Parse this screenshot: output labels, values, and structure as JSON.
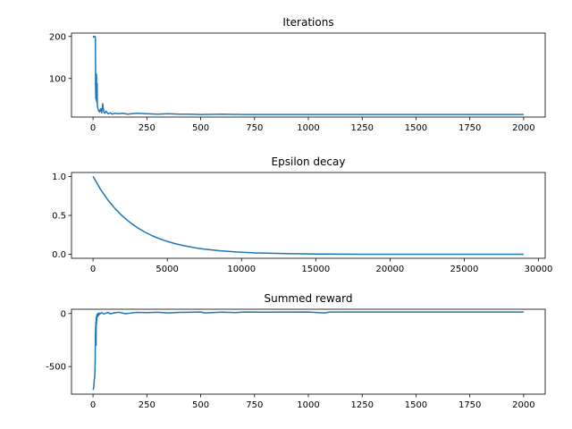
{
  "chart_data": [
    {
      "type": "line",
      "title": "Iterations",
      "xlabel": "",
      "ylabel": "",
      "xlim": [
        -100,
        2100
      ],
      "ylim": [
        8,
        208
      ],
      "xticks": [
        0,
        250,
        500,
        750,
        1000,
        1250,
        1500,
        1750,
        2000
      ],
      "yticks": [
        100,
        200
      ],
      "grid": false,
      "series": [
        {
          "color": "#1f77b4",
          "x": [
            0,
            1,
            2,
            3,
            4,
            5,
            6,
            7,
            8,
            9,
            10,
            11,
            12,
            13,
            14,
            15,
            16,
            17,
            18,
            19,
            20,
            22,
            24,
            26,
            28,
            30,
            35,
            40,
            45,
            50,
            55,
            60,
            70,
            80,
            90,
            100,
            120,
            140,
            160,
            180,
            200,
            250,
            300,
            350,
            400,
            450,
            500,
            600,
            700,
            800,
            900,
            1000,
            1250,
            1500,
            1750,
            2000
          ],
          "y": [
            200,
            200,
            198,
            200,
            200,
            200,
            200,
            200,
            200,
            200,
            200,
            195,
            80,
            52,
            105,
            48,
            110,
            60,
            42,
            88,
            35,
            30,
            26,
            24,
            22,
            20,
            28,
            18,
            40,
            19,
            17,
            22,
            16,
            18,
            15,
            17,
            16,
            17,
            15,
            16,
            17,
            16,
            15,
            16,
            15,
            15,
            14,
            15,
            14,
            14,
            14,
            14,
            14,
            14,
            14,
            14
          ]
        }
      ]
    },
    {
      "type": "line",
      "title": "Epsilon decay",
      "xlabel": "",
      "ylabel": "",
      "xlim": [
        -1450,
        30450
      ],
      "ylim": [
        -0.05,
        1.05
      ],
      "xticks": [
        0,
        5000,
        10000,
        15000,
        20000,
        25000,
        30000
      ],
      "yticks": [
        0.0,
        0.5,
        1.0
      ],
      "grid": false,
      "series": [
        {
          "color": "#1f77b4",
          "x": [
            0,
            500,
            1000,
            1500,
            2000,
            2500,
            3000,
            3500,
            4000,
            4500,
            5000,
            5500,
            6000,
            6500,
            7000,
            7500,
            8000,
            8500,
            9000,
            9500,
            10000,
            11000,
            12000,
            13000,
            14000,
            15000,
            16000,
            17000,
            18000,
            19000,
            20000,
            21000,
            22000,
            23000,
            24000,
            25000,
            26000,
            27000,
            28000,
            29000
          ],
          "y": [
            1.0,
            0.835,
            0.698,
            0.584,
            0.488,
            0.408,
            0.341,
            0.285,
            0.238,
            0.199,
            0.166,
            0.139,
            0.116,
            0.097,
            0.081,
            0.068,
            0.057,
            0.047,
            0.04,
            0.033,
            0.028,
            0.019,
            0.014,
            0.01,
            0.007,
            0.005,
            0.004,
            0.003,
            0.002,
            0.002,
            0.001,
            0.001,
            0.001,
            0.001,
            0.001,
            0.001,
            0.001,
            0.001,
            0.001,
            0.001
          ]
        }
      ]
    },
    {
      "type": "line",
      "title": "Summed reward",
      "xlabel": "",
      "ylabel": "",
      "xlim": [
        -100,
        2100
      ],
      "ylim": [
        -760,
        40
      ],
      "xticks": [
        0,
        250,
        500,
        750,
        1000,
        1250,
        1500,
        1750,
        2000
      ],
      "yticks": [
        -500,
        0
      ],
      "grid": false,
      "series": [
        {
          "color": "#1f77b4",
          "x": [
            0,
            2,
            4,
            6,
            8,
            10,
            11,
            12,
            13,
            14,
            15,
            16,
            17,
            18,
            19,
            20,
            22,
            24,
            26,
            28,
            30,
            35,
            40,
            50,
            60,
            70,
            80,
            100,
            120,
            150,
            200,
            250,
            300,
            350,
            400,
            450,
            500,
            520,
            600,
            660,
            700,
            800,
            1000,
            1075,
            1100,
            1250,
            1500,
            1750,
            2000
          ],
          "y": [
            -720,
            -710,
            -680,
            -620,
            -600,
            -450,
            -200,
            -150,
            -80,
            -300,
            -40,
            -100,
            -20,
            -60,
            -10,
            -5,
            -30,
            0,
            -15,
            5,
            -8,
            0,
            8,
            -5,
            3,
            10,
            -3,
            6,
            12,
            -2,
            10,
            8,
            12,
            5,
            10,
            12,
            14,
            5,
            13,
            8,
            14,
            13,
            14,
            5,
            14,
            14,
            14,
            14,
            14
          ]
        }
      ]
    }
  ]
}
